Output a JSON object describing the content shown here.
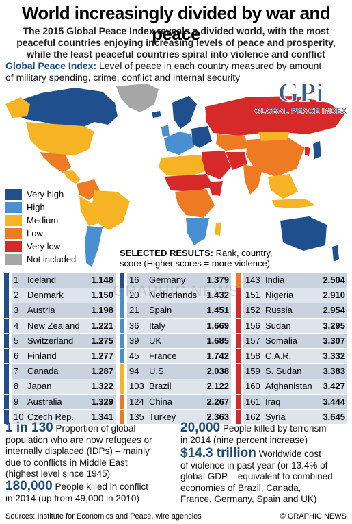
{
  "headline": "World increasingly divided by war and peace",
  "subheadline": [
    "The 2015 Global Peace Index reveals a divided world, with the most",
    "peaceful countries enjoying increasing levels of peace and prosperity,",
    "while the least peaceful countries spiral into violence and conflict"
  ],
  "gpi_intro": {
    "label": "Global Peace Index:",
    "line1_rest": " Level of peace in each country measured by amount",
    "line2": "of military spending, crime, conflict and internal security"
  },
  "logo": {
    "mark": "GPi",
    "name": "GLOBAL PEACE INDEX"
  },
  "legend": [
    {
      "label": "Very high",
      "color": "#1f4f8c"
    },
    {
      "label": "High",
      "color": "#4a90d0"
    },
    {
      "label": "Medium",
      "color": "#f6b324"
    },
    {
      "label": "Low",
      "color": "#ee7a23"
    },
    {
      "label": "Very low",
      "color": "#d62a2a"
    },
    {
      "label": "Not included",
      "color": "#a6a6a6"
    }
  ],
  "selected_results": {
    "label": "SELECTED RESULTS:",
    "line1_rest": " Rank, country,",
    "line2": "score (Higher scores = more violence)"
  },
  "rankings": [
    [
      {
        "rank": "1",
        "country": "Iceland",
        "score": "1.148"
      },
      {
        "rank": "2",
        "country": "Denmark",
        "score": "1.150"
      },
      {
        "rank": "3",
        "country": "Austria",
        "score": "1.198"
      },
      {
        "rank": "4",
        "country": "New Zealand",
        "score": "1.221"
      },
      {
        "rank": "5",
        "country": "Switzerland",
        "score": "1.275"
      },
      {
        "rank": "6",
        "country": "Finland",
        "score": "1.277"
      },
      {
        "rank": "7",
        "country": "Canada",
        "score": "1.287"
      },
      {
        "rank": "8",
        "country": "Japan",
        "score": "1.322"
      },
      {
        "rank": "9",
        "country": "Australia",
        "score": "1.329"
      },
      {
        "rank": "10",
        "country": "Czech Rep.",
        "score": "1.341"
      }
    ],
    [
      {
        "rank": "16",
        "country": "Germany",
        "score": "1.379"
      },
      {
        "rank": "20",
        "country": "Netherlands",
        "score": "1.432"
      },
      {
        "rank": "21",
        "country": "Spain",
        "score": "1.451"
      },
      {
        "rank": "36",
        "country": "Italy",
        "score": "1.669"
      },
      {
        "rank": "39",
        "country": "UK",
        "score": "1.685"
      },
      {
        "rank": "45",
        "country": "France",
        "score": "1.742"
      },
      {
        "rank": "94",
        "country": "U.S.",
        "score": "2.038"
      },
      {
        "rank": "103",
        "country": "Brazil",
        "score": "2.122"
      },
      {
        "rank": "124",
        "country": "China",
        "score": "2.267"
      },
      {
        "rank": "135",
        "country": "Turkey",
        "score": "2.363"
      }
    ],
    [
      {
        "rank": "143",
        "country": "India",
        "score": "2.504"
      },
      {
        "rank": "151",
        "country": "Nigeria",
        "score": "2.910"
      },
      {
        "rank": "152",
        "country": "Russia",
        "score": "2.954"
      },
      {
        "rank": "156",
        "country": "Sudan",
        "score": "3.295"
      },
      {
        "rank": "157",
        "country": "Somalia",
        "score": "3.307"
      },
      {
        "rank": "158",
        "country": "C.A.R.",
        "score": "3.332"
      },
      {
        "rank": "159",
        "country": "S. Sudan",
        "score": "3.383"
      },
      {
        "rank": "160",
        "country": "Afghanistan",
        "score": "3.427"
      },
      {
        "rank": "161",
        "country": "Iraq",
        "score": "3.444"
      },
      {
        "rank": "162",
        "country": "Syria",
        "score": "3.645"
      }
    ]
  ],
  "rank_colors": [
    [
      "#1f4f8c",
      "#1f4f8c",
      "#1f4f8c",
      "#1f4f8c",
      "#1f4f8c",
      "#1f4f8c",
      "#1f4f8c",
      "#1f4f8c",
      "#1f4f8c",
      "#1f4f8c"
    ],
    [
      "#1f4f8c",
      "#4a90d0",
      "#4a90d0",
      "#4a90d0",
      "#4a90d0",
      "#4a90d0",
      "#f6b324",
      "#f6b324",
      "#ee7a23",
      "#ee7a23"
    ],
    [
      "#ee7a23",
      "#d62a2a",
      "#d62a2a",
      "#d62a2a",
      "#d62a2a",
      "#d62a2a",
      "#d62a2a",
      "#d62a2a",
      "#d62a2a",
      "#d62a2a"
    ]
  ],
  "stats": {
    "refugees": {
      "value": "1 in 130",
      "lines": [
        " Proportion of global",
        "population who are now refugees or",
        "internally displaced (IDPs) – mainly",
        "due to conflicts in Middle East",
        "(highest level since 1945)"
      ]
    },
    "terrorism": {
      "value": "20,000",
      "lines": [
        " People killed by terrorism",
        "in 2014 (nine percent increase)"
      ]
    },
    "cost": {
      "value": "$14.3 trillion",
      "lines": [
        " Worldwide cost",
        "of violence in past year (or 13.4% of",
        "global GDP – equivalent to combined",
        "economies of Brazil, Canada,",
        "France, Germany, Spain and UK)"
      ]
    },
    "conflict": {
      "value": "180,000",
      "lines": [
        " People killed in conflict",
        "in 2014 (up from 49,000 in 2010)"
      ]
    }
  },
  "watermark": "GRAPHIC NEWS",
  "source": "Sources: Institute for Economics and Peace, wire agencies",
  "credit": "© GRAPHIC NEWS"
}
